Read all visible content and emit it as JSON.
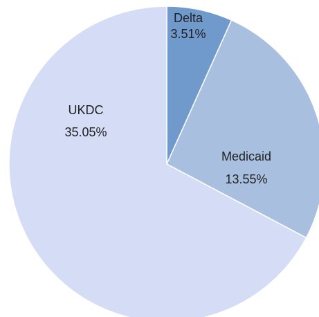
{
  "chart_data": {
    "type": "pie",
    "categories": [
      "Delta",
      "Medicaid",
      "UKDC"
    ],
    "values": [
      3.51,
      13.55,
      35.05
    ],
    "value_labels": [
      "3.51%",
      "13.55%",
      "35.05%"
    ],
    "colors": [
      "#7099cc",
      "#a8bfdf",
      "#d5dcf6"
    ]
  }
}
